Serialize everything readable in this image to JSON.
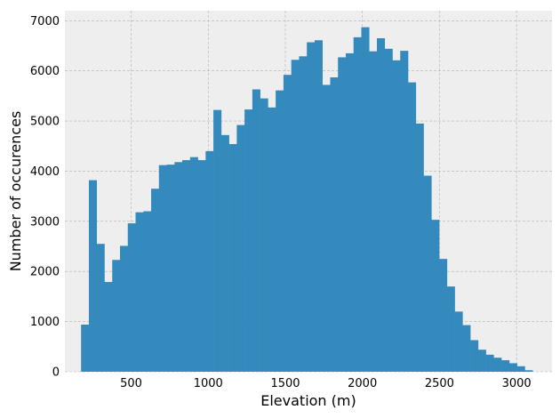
{
  "chart_data": {
    "type": "bar",
    "title": "",
    "xlabel": "Elevation (m)",
    "ylabel": "Number of occurences",
    "xlim": [
      70,
      3230
    ],
    "ylim": [
      0,
      7200
    ],
    "xticks": [
      500,
      1000,
      1500,
      2000,
      2500,
      3000
    ],
    "yticks": [
      0,
      1000,
      2000,
      3000,
      4000,
      5000,
      6000,
      7000
    ],
    "grid": true,
    "bar_color": "#348ABD",
    "background_color": "#EEEEEE",
    "bins": {
      "start": 175,
      "width": 50.5,
      "values": [
        940,
        3820,
        2550,
        1790,
        2230,
        2510,
        2960,
        3180,
        3200,
        3650,
        4120,
        4130,
        4180,
        4220,
        4280,
        4220,
        4400,
        5220,
        4720,
        4540,
        4920,
        5230,
        5630,
        5450,
        5270,
        5610,
        5920,
        6220,
        6290,
        6570,
        6610,
        5720,
        5870,
        6270,
        6350,
        6670,
        6870,
        6390,
        6650,
        6440,
        6210,
        6400,
        5770,
        4950,
        3910,
        3030,
        2250,
        1700,
        1200,
        930,
        630,
        440,
        340,
        280,
        230,
        170,
        110,
        30
      ]
    }
  }
}
